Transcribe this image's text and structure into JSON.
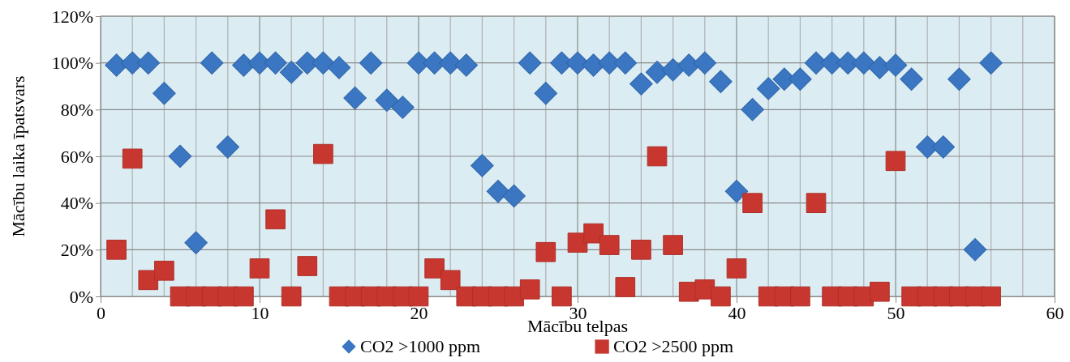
{
  "chart_data": {
    "type": "scatter",
    "xlabel": "Mācību telpas",
    "ylabel": "Mācību laika īpatsvars",
    "xlim": [
      0,
      60
    ],
    "xticks": [
      0,
      {
        "value": 2,
        "label": null
      },
      {
        "value": 4,
        "label": null
      },
      {
        "value": 6,
        "label": null
      },
      {
        "value": 8,
        "label": null
      },
      10,
      {
        "value": 12,
        "label": null
      },
      {
        "value": 14,
        "label": null
      },
      {
        "value": 16,
        "label": null
      },
      {
        "value": 18,
        "label": null
      },
      20,
      {
        "value": 22,
        "label": null
      },
      {
        "value": 24,
        "label": null
      },
      {
        "value": 26,
        "label": null
      },
      {
        "value": 28,
        "label": null
      },
      30,
      {
        "value": 32,
        "label": null
      },
      {
        "value": 34,
        "label": null
      },
      {
        "value": 36,
        "label": null
      },
      {
        "value": 38,
        "label": null
      },
      40,
      {
        "value": 42,
        "label": null
      },
      {
        "value": 44,
        "label": null
      },
      {
        "value": 46,
        "label": null
      },
      {
        "value": 48,
        "label": null
      },
      50,
      {
        "value": 52,
        "label": null
      },
      {
        "value": 54,
        "label": null
      },
      {
        "value": 56,
        "label": null
      },
      {
        "value": 58,
        "label": null
      },
      60
    ],
    "ylim": [
      0,
      120
    ],
    "yticks": [
      {
        "value": 0,
        "label": "0%"
      },
      {
        "value": 20,
        "label": "20%"
      },
      {
        "value": 40,
        "label": "40%"
      },
      {
        "value": 60,
        "label": "60%"
      },
      {
        "value": 80,
        "label": "80%"
      },
      {
        "value": 100,
        "label": "100%"
      },
      {
        "value": 120,
        "label": "120%"
      }
    ],
    "grid": true,
    "legend": "bottom",
    "x": [
      1,
      2,
      3,
      4,
      5,
      6,
      7,
      8,
      9,
      10,
      11,
      12,
      13,
      14,
      15,
      16,
      17,
      18,
      19,
      20,
      21,
      22,
      23,
      24,
      25,
      26,
      27,
      28,
      29,
      30,
      31,
      32,
      33,
      34,
      35,
      36,
      37,
      38,
      39,
      40,
      41,
      42,
      43,
      44,
      45,
      46,
      47,
      48,
      49,
      50,
      51,
      52,
      53,
      54,
      55,
      56
    ],
    "series": [
      {
        "name": "CO2 >1000 ppm",
        "color": "#3a76c2",
        "marker": "diamond",
        "values": [
          99,
          100,
          100,
          87,
          60,
          23,
          100,
          64,
          99,
          100,
          100,
          96,
          100,
          100,
          98,
          85,
          100,
          84,
          81,
          100,
          100,
          100,
          99,
          56,
          45,
          43,
          100,
          87,
          100,
          100,
          99,
          100,
          100,
          91,
          96,
          97,
          99,
          100,
          92,
          45,
          80,
          89,
          93,
          93,
          100,
          100,
          100,
          100,
          98,
          99,
          93,
          64,
          64,
          93,
          20,
          100
        ]
      },
      {
        "name": "CO2 >2500 ppm",
        "color": "#c8372f",
        "marker": "square",
        "values": [
          20,
          59,
          7,
          11,
          0,
          0,
          0,
          0,
          0,
          12,
          33,
          0,
          13,
          61,
          0,
          0,
          0,
          0,
          0,
          0,
          12,
          7,
          0,
          0,
          0,
          0,
          3,
          19,
          0,
          23,
          27,
          22,
          4,
          20,
          60,
          22,
          2,
          3,
          0,
          12,
          40,
          0,
          0,
          0,
          40,
          0,
          0,
          0,
          2,
          58,
          0,
          0,
          0,
          0,
          0,
          0
        ]
      }
    ]
  }
}
